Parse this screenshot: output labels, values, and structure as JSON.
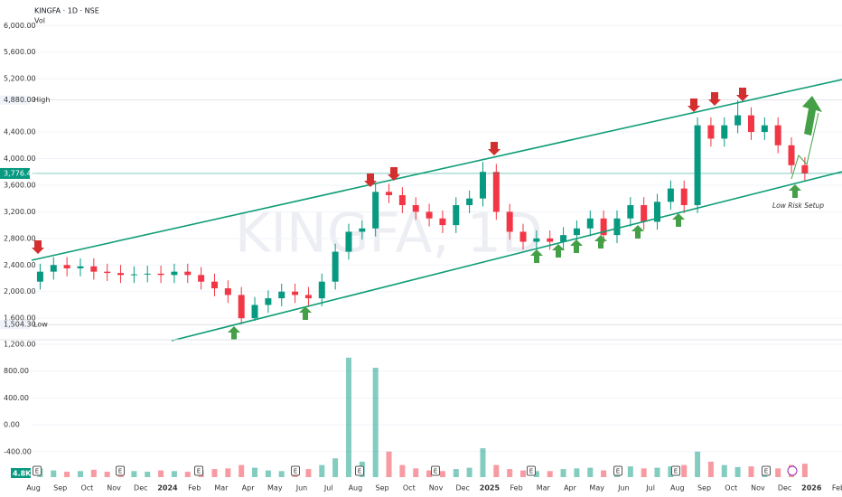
{
  "chart_data": {
    "type": "candlestick",
    "title": "KINGFA · 1D · NSE",
    "volume_title": "Vol",
    "watermark": "KINGFA, 1D",
    "annotation": "Low Risk Setup",
    "categories": [
      "Aug",
      null,
      "Sep",
      null,
      "Oct",
      null,
      "Nov",
      null,
      "Dec",
      null,
      "2024",
      null,
      "Feb",
      null,
      "Mar",
      null,
      "Apr",
      null,
      "May",
      null,
      "Jun",
      null,
      "Jul",
      null,
      "Aug",
      null,
      "Sep",
      null,
      "Oct",
      null,
      "Nov",
      null,
      "Dec",
      null,
      "2025",
      null,
      "Feb",
      null,
      "Mar",
      null,
      "Apr",
      null,
      "May",
      null,
      "Jun",
      null,
      "Jul",
      null,
      "Aug",
      null,
      "Sep",
      null,
      "Oct",
      null,
      "Nov",
      null,
      "Dec",
      null,
      "2026",
      null,
      "Feb",
      null
    ],
    "open": [
      2150,
      2300,
      2400,
      2350,
      2380,
      2300,
      2280,
      2250,
      2260,
      2270,
      2250,
      2300,
      2250,
      2150,
      2050,
      1950,
      1600,
      1800,
      1900,
      2000,
      1950,
      1900,
      2150,
      2600,
      2900,
      2950,
      3500,
      3450,
      3300,
      3200,
      3100,
      3000,
      3300,
      3400,
      3800,
      3200,
      2900,
      2750,
      2800,
      2750,
      2850,
      2950,
      3100,
      2850,
      3100,
      3300,
      3050,
      3350,
      3550,
      3300,
      4500,
      4300,
      4500,
      4650,
      4400,
      4500,
      4200,
      3900,
      null,
      null,
      null,
      null
    ],
    "high": [
      2420,
      2520,
      2520,
      2500,
      2500,
      2420,
      2400,
      2380,
      2390,
      2390,
      2420,
      2420,
      2370,
      2270,
      2170,
      2070,
      1920,
      2020,
      2120,
      2120,
      2070,
      2270,
      2720,
      3020,
      3070,
      3620,
      3620,
      3570,
      3420,
      3320,
      3220,
      3420,
      3520,
      3950,
      3920,
      3320,
      3020,
      2920,
      2920,
      2970,
      3070,
      3220,
      3220,
      3220,
      3420,
      3420,
      3470,
      3670,
      3670,
      4620,
      4620,
      4620,
      4880,
      4770,
      4620,
      4620,
      4320,
      4020,
      null,
      null,
      null,
      null
    ],
    "low": [
      2030,
      2180,
      2230,
      2230,
      2180,
      2160,
      2130,
      2130,
      2140,
      2130,
      2130,
      2130,
      2030,
      1930,
      1830,
      1504.3,
      1560,
      1680,
      1780,
      1830,
      1780,
      1780,
      2030,
      2480,
      2780,
      2830,
      3330,
      3180,
      3080,
      2980,
      2880,
      2880,
      3180,
      3280,
      3080,
      2780,
      2630,
      2630,
      2630,
      2630,
      2730,
      2830,
      2730,
      2730,
      2980,
      2930,
      2930,
      3230,
      3180,
      3180,
      4180,
      4180,
      4380,
      4280,
      4280,
      4080,
      3780,
      3656,
      null,
      null,
      null,
      null
    ],
    "close": [
      2300,
      2400,
      2350,
      2380,
      2300,
      2280,
      2250,
      2260,
      2270,
      2250,
      2300,
      2250,
      2150,
      2050,
      1950,
      1600,
      1800,
      1900,
      2000,
      1950,
      1900,
      2150,
      2600,
      2900,
      2950,
      3500,
      3450,
      3300,
      3200,
      3100,
      3000,
      3300,
      3400,
      3800,
      3200,
      2900,
      2750,
      2800,
      2750,
      2850,
      2950,
      3100,
      2850,
      3100,
      3300,
      3050,
      3350,
      3550,
      3300,
      4500,
      4300,
      4500,
      4650,
      4400,
      4500,
      4200,
      3900,
      3776.4,
      null,
      null,
      null,
      null
    ],
    "volume": [
      -650,
      -680,
      -700,
      -690,
      -670,
      -700,
      -710,
      -690,
      -700,
      -680,
      -690,
      -700,
      -680,
      -660,
      -650,
      -600,
      -640,
      -680,
      -690,
      -700,
      -660,
      -600,
      -500,
      1000,
      -550,
      850,
      -400,
      -600,
      -650,
      -680,
      -690,
      -660,
      -640,
      -350,
      -600,
      -660,
      -680,
      -690,
      -690,
      -660,
      -650,
      -640,
      -680,
      -660,
      -620,
      -650,
      -640,
      -620,
      -600,
      -400,
      -550,
      -600,
      -630,
      -620,
      -640,
      -650,
      -600,
      -580,
      null,
      null,
      null,
      null
    ],
    "up_color": "#089981",
    "down_color": "#f23645",
    "ylim": [
      1290,
      6180
    ],
    "yticks": [
      {
        "value": 1600,
        "label": "1,600.00"
      },
      {
        "value": 2000,
        "label": "2,000.00"
      },
      {
        "value": 2400,
        "label": "2,400.00"
      },
      {
        "value": 2800,
        "label": "2,800.00"
      },
      {
        "value": 3200,
        "label": "3,200.00"
      },
      {
        "value": 3600,
        "label": "3,600.00"
      },
      {
        "value": 4000,
        "label": "4,000.00"
      },
      {
        "value": 4400,
        "label": "4,400.00"
      },
      {
        "value": 5200,
        "label": "5,200.00"
      },
      {
        "value": 5600,
        "label": "5,600.00"
      },
      {
        "value": 6000,
        "label": "6,000.00"
      }
    ],
    "y2lim": [
      -780,
      1240
    ],
    "y2ticks": [
      {
        "value": -400,
        "label": "-400.00"
      },
      {
        "value": 0,
        "label": "0.00"
      },
      {
        "value": 400,
        "label": "400.00"
      },
      {
        "value": 800,
        "label": "800.00"
      },
      {
        "value": 1200,
        "label": "1,200.00"
      }
    ],
    "price_markers": [
      {
        "name": "High",
        "value": 4880,
        "label": "4,880.00"
      },
      {
        "name": "Low",
        "value": 1504.3,
        "label": "1,504.30"
      }
    ],
    "last_price": {
      "value": 3776.4,
      "label": "3,776.40"
    },
    "volume_tag": "4.8K",
    "events": [
      "E",
      "E",
      "E",
      "E",
      "E",
      "E",
      "E",
      "E",
      "E",
      "E"
    ]
  }
}
